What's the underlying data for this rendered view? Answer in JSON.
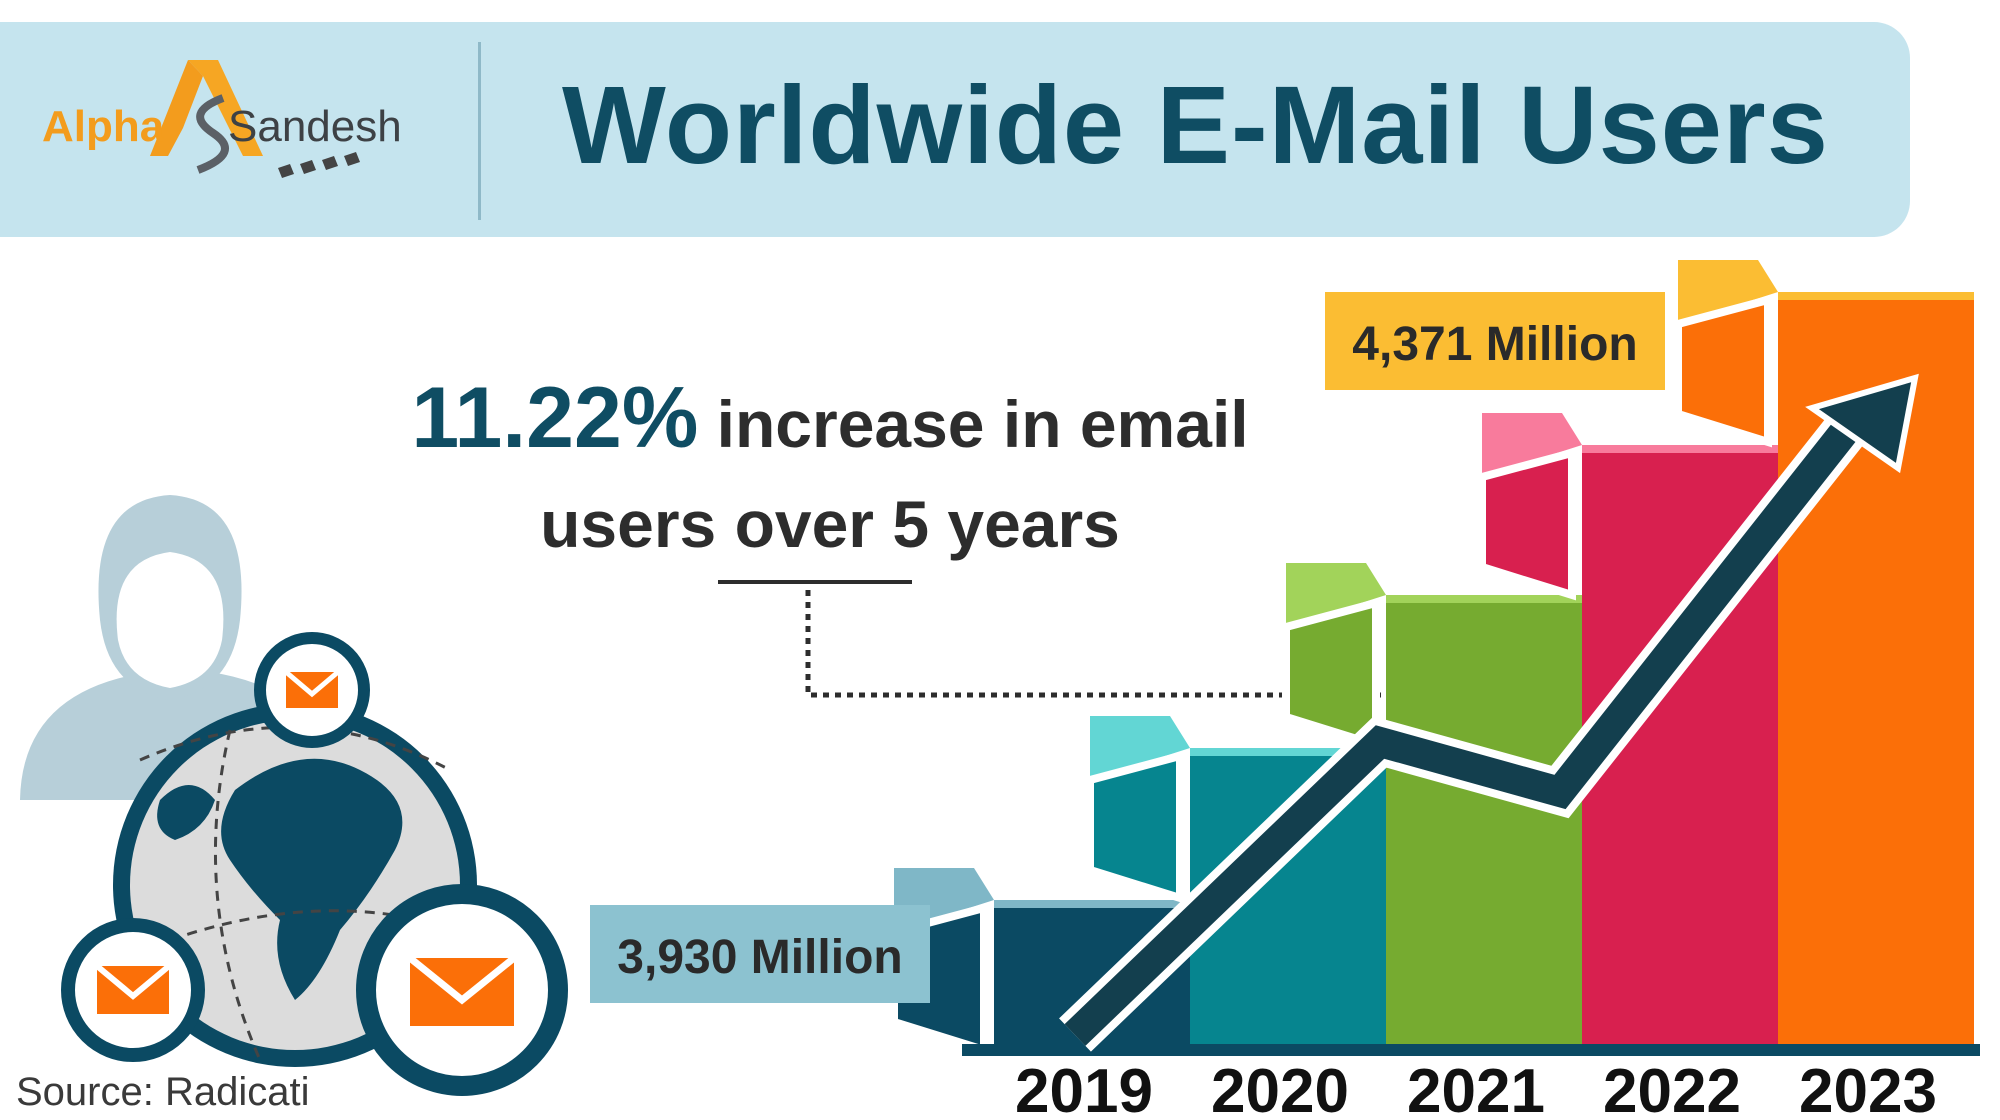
{
  "header": {
    "logo_text_left": "Alpha",
    "logo_text_right": "Sandesh",
    "title": "Worldwide E-Mail Users"
  },
  "headline": {
    "percent": "11.22%",
    "line1_rest": " increase in email",
    "line2": "users over 5 years"
  },
  "source": "Source: Radicati",
  "colors": {
    "header_bg": "#c5e4ee",
    "title": "#0f4d63",
    "bar_2019": "#0b4a63",
    "bar_2020": "#06858f",
    "bar_2021": "#76ab30",
    "bar_2022": "#d8204f",
    "bar_2023": "#fb6f08",
    "arrow": "#133f4e",
    "label_2019_bg": "#8cc2d0",
    "label_2023_bg": "#fbbd33"
  },
  "chart_data": {
    "type": "bar",
    "categories": [
      "2019",
      "2020",
      "2021",
      "2022",
      "2023"
    ],
    "annotations": [
      {
        "category": "2019",
        "text": "3,930 Million"
      },
      {
        "category": "2023",
        "text": "4,371 Million"
      }
    ]
  }
}
